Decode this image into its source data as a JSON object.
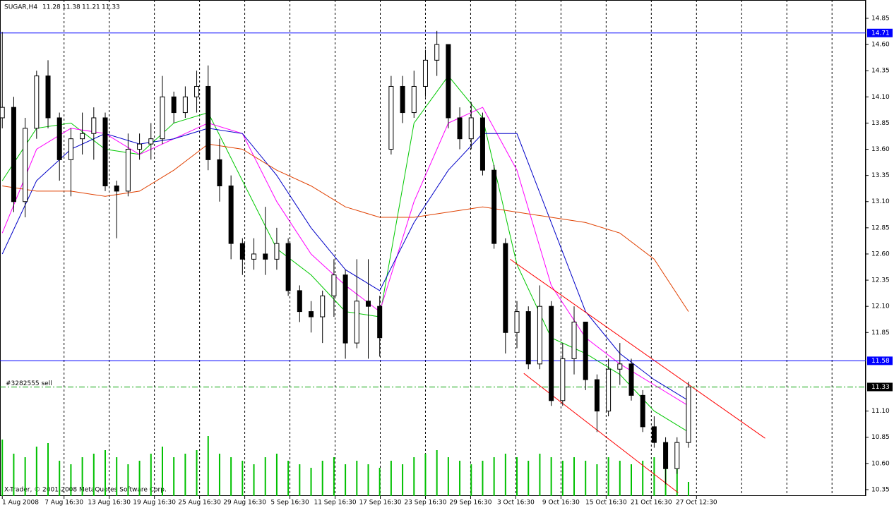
{
  "chart_data": {
    "type": "candlestick",
    "title": "SUGAR,H4",
    "quote": [
      11.28,
      11.38,
      11.21,
      11.33
    ],
    "watermark": "X-Trader, © 2001-2008 MetaQuotes Software Corp.",
    "xlim": [
      -0.2,
      75.5
    ],
    "ylim": [
      10.289,
      15.025
    ],
    "xticks": [
      {
        "value": 0,
        "label": "1 Aug 2008"
      },
      {
        "value": 5.4,
        "label": "7 Aug 16:30"
      },
      {
        "value": 9.35,
        "label": "13 Aug 16:30"
      },
      {
        "value": 13.3,
        "label": "19 Aug 16:30"
      },
      {
        "value": 17.25,
        "label": "25 Aug 16:30"
      },
      {
        "value": 21.2,
        "label": "29 Aug 16:30"
      },
      {
        "value": 25.15,
        "label": "5 Sep 16:30"
      },
      {
        "value": 29.1,
        "label": "11 Sep 16:30"
      },
      {
        "value": 33.05,
        "label": "17 Sep 16:30"
      },
      {
        "value": 37,
        "label": "23 Sep 16:30"
      },
      {
        "value": 40.95,
        "label": "29 Sep 16:30"
      },
      {
        "value": 44.9,
        "label": "3 Oct 16:30"
      },
      {
        "value": 48.85,
        "label": "9 Oct 16:30"
      },
      {
        "value": 52.8,
        "label": "15 Oct 16:30"
      },
      {
        "value": 56.75,
        "label": "21 Oct 16:30"
      },
      {
        "value": 60.7,
        "label": "27 Oct 12:30"
      }
    ],
    "xgrid": [
      5.4,
      9.35,
      13.3,
      17.25,
      21.2,
      25.15,
      29.1,
      33.05,
      37,
      40.95,
      44.9,
      48.85,
      52.8,
      56.75,
      60.7,
      64.65,
      68.6,
      72.55
    ],
    "yticks": [
      14.85,
      {
        "value": 14.6,
        "label": "14.60"
      },
      14.35,
      {
        "value": 14.1,
        "label": "14.10"
      },
      13.85,
      {
        "value": 13.6,
        "label": "13.60"
      },
      13.35,
      {
        "value": 13.1,
        "label": "13.10"
      },
      12.85,
      {
        "value": 12.6,
        "label": "12.60"
      },
      12.35,
      {
        "value": 12.1,
        "label": "12.10"
      },
      11.85,
      {
        "value": 11.1,
        "label": "11.10"
      },
      10.85,
      {
        "value": 10.6,
        "label": "10.60"
      },
      10.35
    ],
    "up_color": "#ffffff",
    "down_color": "#000000",
    "open": [
      13.9,
      14.0,
      13.1,
      13.8,
      14.3,
      13.9,
      13.5,
      13.7,
      13.75,
      13.9,
      13.25,
      13.2,
      13.6,
      13.65,
      13.7,
      14.1,
      13.95,
      14.1,
      14.2,
      13.5,
      13.25,
      12.7,
      12.55,
      12.6,
      12.55,
      12.7,
      12.25,
      12.05,
      12.0,
      12.2,
      12.4,
      11.75,
      12.15,
      12.1,
      13.6,
      14.2,
      13.95,
      14.2,
      14.45,
      14.6,
      13.9,
      13.7,
      13.9,
      13.4,
      12.7,
      11.85,
      12.05,
      11.55,
      12.1,
      11.2,
      11.6,
      11.95,
      11.4,
      11.1,
      11.5,
      11.55,
      11.25,
      10.95,
      10.8,
      10.55,
      10.8
    ],
    "high": [
      14.72,
      14.1,
      13.9,
      14.35,
      14.45,
      13.95,
      13.8,
      13.95,
      14.0,
      13.95,
      13.3,
      13.75,
      13.75,
      13.85,
      14.3,
      14.15,
      14.2,
      14.35,
      14.4,
      13.7,
      13.35,
      12.75,
      12.75,
      13.05,
      12.85,
      12.75,
      12.3,
      12.15,
      12.25,
      12.55,
      12.45,
      12.55,
      12.55,
      12.2,
      14.3,
      14.3,
      14.35,
      14.55,
      14.73,
      14.6,
      14.0,
      14.05,
      13.95,
      13.45,
      12.75,
      12.15,
      12.1,
      12.3,
      12.15,
      11.75,
      12.1,
      11.95,
      11.45,
      11.6,
      11.75,
      11.6,
      11.3,
      11.05,
      10.85,
      10.85,
      11.38
    ],
    "low": [
      13.8,
      13.0,
      12.95,
      13.7,
      13.8,
      13.3,
      13.15,
      13.55,
      13.5,
      13.2,
      12.75,
      13.15,
      13.5,
      13.5,
      13.65,
      13.85,
      13.9,
      13.95,
      13.4,
      13.1,
      12.55,
      12.4,
      12.45,
      12.4,
      12.45,
      12.2,
      11.95,
      11.85,
      11.75,
      12.0,
      11.6,
      11.7,
      11.6,
      11.62,
      13.55,
      13.85,
      13.9,
      14.1,
      14.3,
      13.8,
      13.6,
      13.6,
      13.35,
      12.65,
      11.65,
      11.7,
      11.5,
      11.5,
      11.15,
      11.15,
      11.45,
      11.3,
      10.9,
      11.05,
      11.35,
      11.2,
      10.9,
      10.75,
      10.4,
      10.5,
      10.75
    ],
    "close": [
      14.0,
      13.1,
      13.8,
      14.3,
      13.9,
      13.5,
      13.7,
      13.75,
      13.9,
      13.25,
      13.2,
      13.6,
      13.65,
      13.7,
      14.1,
      13.95,
      14.1,
      14.2,
      13.5,
      13.25,
      12.7,
      12.55,
      12.6,
      12.55,
      12.7,
      12.25,
      12.05,
      12.0,
      12.2,
      12.4,
      11.75,
      12.15,
      12.1,
      11.8,
      14.2,
      13.95,
      14.2,
      14.45,
      14.6,
      13.9,
      13.7,
      13.9,
      13.4,
      12.7,
      11.85,
      12.05,
      11.55,
      12.1,
      11.2,
      11.6,
      11.95,
      11.4,
      11.1,
      11.5,
      11.55,
      11.25,
      10.95,
      10.8,
      10.55,
      10.8,
      11.33
    ],
    "volume": {
      "color": "#00c000",
      "values": [
        80,
        60,
        55,
        70,
        75,
        50,
        45,
        55,
        60,
        65,
        55,
        45,
        50,
        60,
        70,
        55,
        60,
        65,
        85,
        60,
        55,
        50,
        45,
        55,
        60,
        50,
        45,
        40,
        50,
        55,
        45,
        50,
        45,
        40,
        50,
        45,
        55,
        60,
        65,
        55,
        50,
        45,
        50,
        55,
        60,
        55,
        50,
        60,
        55,
        50,
        55,
        50,
        45,
        55,
        50,
        45,
        50,
        55,
        50,
        45,
        20
      ]
    },
    "indicators": [
      {
        "color": "#00c800",
        "x": [
          0,
          3,
          6,
          9,
          12,
          15,
          18,
          21,
          24,
          27,
          30,
          33,
          36,
          39,
          42,
          45,
          48,
          51,
          54,
          57,
          60
        ],
        "values": [
          13.3,
          13.8,
          13.85,
          13.6,
          13.55,
          13.85,
          13.95,
          13.3,
          12.65,
          12.4,
          12.05,
          12.0,
          13.85,
          14.3,
          13.9,
          12.5,
          11.8,
          11.65,
          11.45,
          11.1,
          10.9
        ]
      },
      {
        "color": "#ff00ff",
        "x": [
          0,
          3,
          6,
          9,
          12,
          15,
          18,
          21,
          24,
          27,
          30,
          33,
          36,
          39,
          42,
          45,
          48,
          51,
          54,
          57,
          60
        ],
        "values": [
          12.8,
          13.6,
          13.8,
          13.75,
          13.55,
          13.7,
          13.85,
          13.75,
          13.1,
          12.6,
          12.3,
          12.05,
          13.1,
          13.85,
          14.0,
          13.4,
          12.3,
          11.8,
          11.55,
          11.35,
          11.15
        ]
      },
      {
        "color": "#0000c8",
        "x": [
          0,
          3,
          6,
          9,
          12,
          15,
          18,
          21,
          24,
          27,
          30,
          33,
          36,
          39,
          42,
          45,
          48,
          51,
          54,
          57,
          60
        ],
        "values": [
          12.6,
          13.3,
          13.6,
          13.75,
          13.65,
          13.7,
          13.8,
          13.75,
          13.35,
          12.85,
          12.45,
          12.25,
          12.9,
          13.4,
          13.75,
          13.75,
          12.9,
          12.05,
          11.65,
          11.4,
          11.2
        ]
      },
      {
        "color": "#e04000",
        "x": [
          0,
          3,
          6,
          9,
          12,
          15,
          18,
          21,
          24,
          27,
          30,
          33,
          36,
          39,
          42,
          45,
          48,
          51,
          54,
          57,
          60
        ],
        "values": [
          13.25,
          13.2,
          13.2,
          13.15,
          13.2,
          13.4,
          13.65,
          13.6,
          13.4,
          13.25,
          13.05,
          12.95,
          12.95,
          13.0,
          13.05,
          13.0,
          12.95,
          12.9,
          12.8,
          12.55,
          12.05
        ]
      }
    ],
    "trendlines": [
      {
        "color": "#ff0000",
        "x": [
          44.4,
          66.7
        ],
        "values": [
          12.55,
          10.84
        ]
      },
      {
        "color": "#ff0000",
        "x": [
          45.6,
          59.1
        ],
        "values": [
          11.46,
          10.32
        ]
      }
    ],
    "levels": [
      {
        "value": 14.71,
        "color": "#0000ff",
        "style": "solid"
      },
      {
        "value": 11.58,
        "color": "#0000ff",
        "style": "solid"
      },
      {
        "value": 11.33,
        "color": "#00a000",
        "style": "dashdot",
        "label": "#3282555 sell",
        "box": "#000000"
      }
    ]
  }
}
